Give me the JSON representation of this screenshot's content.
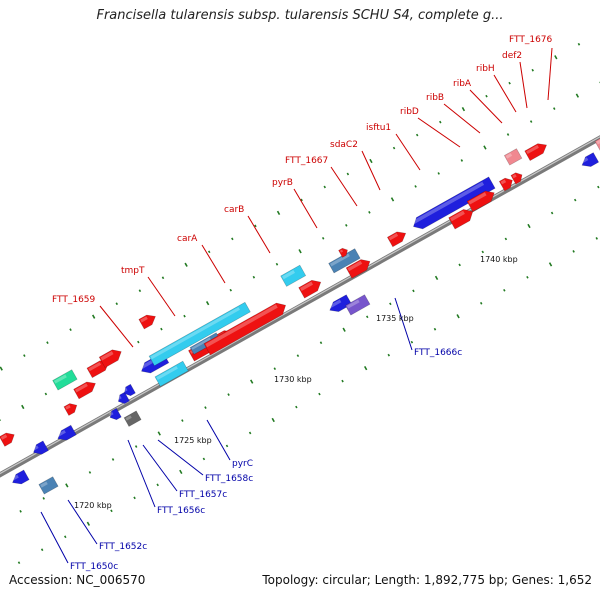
{
  "title": "Francisella tularensis subsp. tularensis SCHU S4, complete g...",
  "footer": {
    "accession": "Accession: NC_006570",
    "topology": "Topology: circular; Length: 1,892,775 bp; Genes: 1,652"
  },
  "colors": {
    "forward_gene": "#ee1111",
    "reverse_gene": "#1f1fdd",
    "rna": "#33ccee",
    "pseudo": "#4a82b4",
    "other_teal": "#22dd99",
    "other_gray": "#666666",
    "other_purple": "#7755cc",
    "pink": "#f08890",
    "top_label": "#cc0000",
    "bottom_label": "#0000a8",
    "backbone": "#8a8a8a",
    "ticks": "#227a22"
  },
  "scale_labels": [
    "1720 kbp",
    "1725 kbp",
    "1730 kbp",
    "1735 kbp",
    "1740 kbp"
  ],
  "top_labels": [
    "FTT_1659",
    "tmpT",
    "carA",
    "carB",
    "pyrB",
    "FTT_1667",
    "sdaC2",
    "isftu1",
    "ribD",
    "ribB",
    "ribA",
    "ribH",
    "def2",
    "FTT_1676"
  ],
  "bottom_labels": [
    "FTT_1650c",
    "FTT_1652c",
    "FTT_1656c",
    "FTT_1657c",
    "FTT_1658c",
    "pyrC",
    "FTT_1666c"
  ]
}
